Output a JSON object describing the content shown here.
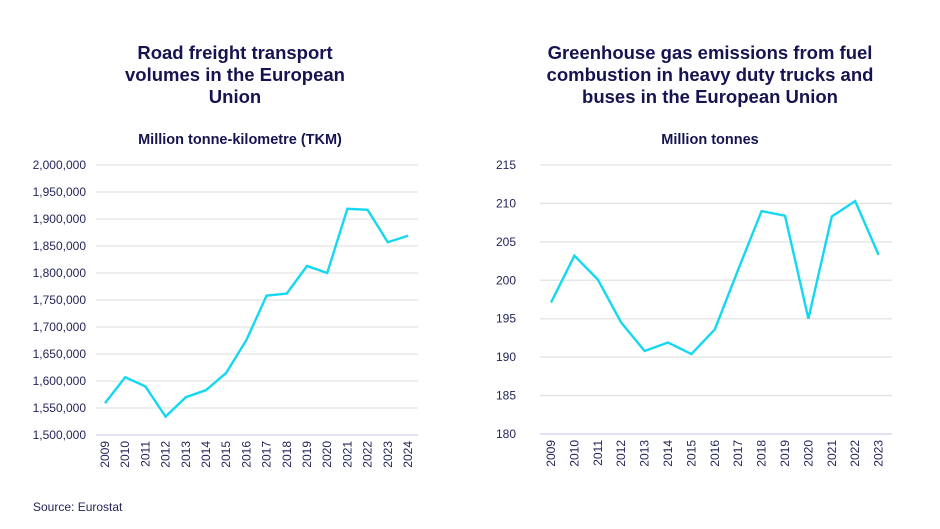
{
  "source": "Source: Eurostat",
  "chart_data": [
    {
      "type": "line",
      "title": "Road freight transport volumes in the European Union",
      "title_lines": [
        "Road freight transport",
        "volumes in the European",
        "Union"
      ],
      "subtitle": "Million tonne-kilometre (TKM)",
      "xlabel": "",
      "ylabel": "Million tonne-kilometre (TKM)",
      "x": [
        "2009",
        "2010",
        "2011",
        "2012",
        "2013",
        "2014",
        "2015",
        "2016",
        "2017",
        "2018",
        "2019",
        "2020",
        "2021",
        "2022",
        "2023",
        "2024"
      ],
      "series": [
        {
          "name": "Road freight transport volume",
          "color": "#14d8f0",
          "values": [
            1559000,
            1607000,
            1590000,
            1534000,
            1570000,
            1583000,
            1615000,
            1676000,
            1758000,
            1762000,
            1813000,
            1800000,
            1919000,
            1917000,
            1857000,
            1869000
          ]
        }
      ],
      "ylim": [
        1500000,
        2000000
      ],
      "yticks": [
        1500000,
        1550000,
        1600000,
        1650000,
        1700000,
        1750000,
        1800000,
        1850000,
        1900000,
        1950000,
        2000000
      ],
      "ytick_labels": [
        "1,500,000",
        "1,550,000",
        "1,600,000",
        "1,650,000",
        "1,700,000",
        "1,750,000",
        "1,800,000",
        "1,850,000",
        "1,900,000",
        "1,950,000",
        "2,000,000"
      ],
      "grid": true,
      "legend": "none"
    },
    {
      "type": "line",
      "title": "Greenhouse gas emissions from fuel combustion in heavy duty trucks and buses in the European Union",
      "title_lines": [
        "Greenhouse gas emissions from fuel",
        "combustion in heavy duty trucks and",
        "buses in the European Union"
      ],
      "subtitle": "Million tonnes",
      "xlabel": "",
      "ylabel": "Million tonnes",
      "x": [
        "2009",
        "2010",
        "2011",
        "2012",
        "2013",
        "2014",
        "2015",
        "2016",
        "2017",
        "2018",
        "2019",
        "2020",
        "2021",
        "2022",
        "2023"
      ],
      "series": [
        {
          "name": "GHG emissions, heavy duty trucks and buses",
          "color": "#14d8f0",
          "values": [
            197.1,
            203.2,
            200.1,
            194.5,
            190.8,
            191.9,
            190.4,
            193.6,
            201.4,
            209.0,
            208.4,
            195.0,
            208.3,
            210.3,
            203.3
          ]
        }
      ],
      "ylim": [
        180,
        215
      ],
      "yticks": [
        180,
        185,
        190,
        195,
        200,
        205,
        210,
        215
      ],
      "ytick_labels": [
        "180",
        "185",
        "190",
        "195",
        "200",
        "205",
        "210",
        "215"
      ],
      "grid": true,
      "legend": "none"
    }
  ]
}
